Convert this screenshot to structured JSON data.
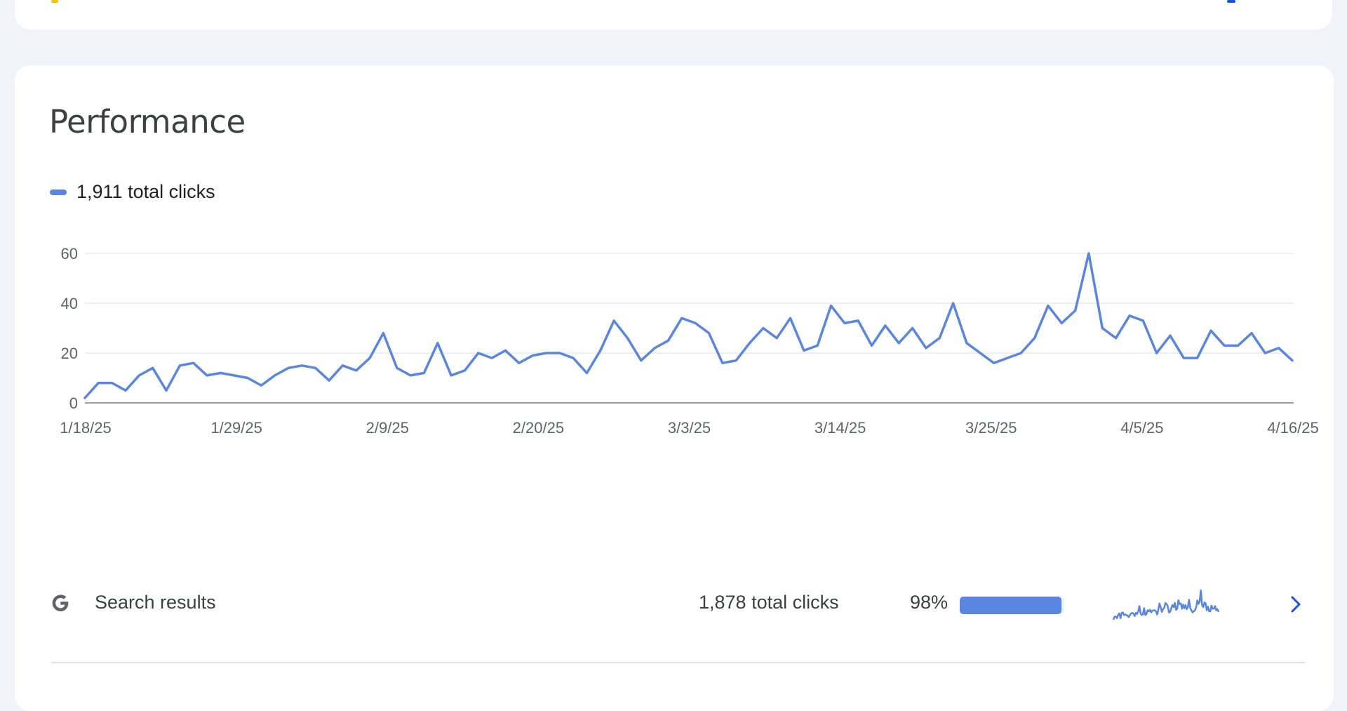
{
  "performance": {
    "title": "Performance",
    "legend_label": "1,911 total clicks",
    "colors": {
      "line": "#5a86e0",
      "grid": "#e8eaed",
      "axis": "#9aa0a6"
    }
  },
  "chart_data": {
    "type": "line",
    "title": "Performance",
    "xlabel": "",
    "ylabel": "",
    "ylim": [
      0,
      60
    ],
    "yticks": [
      0,
      20,
      40,
      60
    ],
    "xtick_labels": [
      "1/18/25",
      "1/29/25",
      "2/9/25",
      "2/20/25",
      "3/3/25",
      "3/14/25",
      "3/25/25",
      "4/5/25",
      "4/16/25"
    ],
    "x_start": "1/18/25",
    "x_end": "4/16/25",
    "grid": true,
    "series": [
      {
        "name": "1,911 total clicks",
        "color": "#5a86e0",
        "values": [
          2,
          8,
          8,
          5,
          11,
          14,
          5,
          15,
          16,
          11,
          12,
          11,
          10,
          7,
          11,
          14,
          15,
          14,
          9,
          15,
          13,
          18,
          28,
          14,
          11,
          12,
          24,
          11,
          13,
          20,
          18,
          21,
          16,
          19,
          20,
          20,
          18,
          12,
          21,
          33,
          26,
          17,
          22,
          25,
          34,
          32,
          28,
          16,
          17,
          24,
          30,
          26,
          34,
          21,
          23,
          39,
          32,
          33,
          23,
          31,
          24,
          30,
          22,
          26,
          40,
          24,
          20,
          16,
          18,
          20,
          26,
          39,
          32,
          37,
          60,
          30,
          26,
          35,
          33,
          20,
          27,
          18,
          18,
          29,
          23,
          23,
          28,
          20,
          22,
          17
        ]
      }
    ]
  },
  "search_results": {
    "label": "Search results",
    "icon": "google-g-icon",
    "total_clicks": "1,878 total clicks",
    "percent_label": "98%",
    "percent_value": 98,
    "sparkline": [
      2,
      8,
      8,
      5,
      11,
      14,
      5,
      15,
      16,
      11,
      12,
      11,
      10,
      7,
      11,
      14,
      15,
      14,
      9,
      15,
      13,
      18,
      28,
      14,
      11,
      12,
      24,
      11,
      13,
      20,
      18,
      21,
      16,
      19,
      20,
      20,
      18,
      12,
      21,
      33,
      26,
      17,
      22,
      25,
      34,
      32,
      28,
      16,
      17,
      24,
      30,
      26,
      34,
      21,
      23,
      39,
      32,
      33,
      23,
      31,
      24,
      30,
      22,
      26,
      40,
      24,
      20,
      16,
      18,
      20,
      26,
      39,
      32,
      37,
      58,
      30,
      26,
      35,
      33,
      20,
      27,
      18,
      18,
      29,
      23,
      23,
      28,
      20,
      22,
      17
    ]
  }
}
